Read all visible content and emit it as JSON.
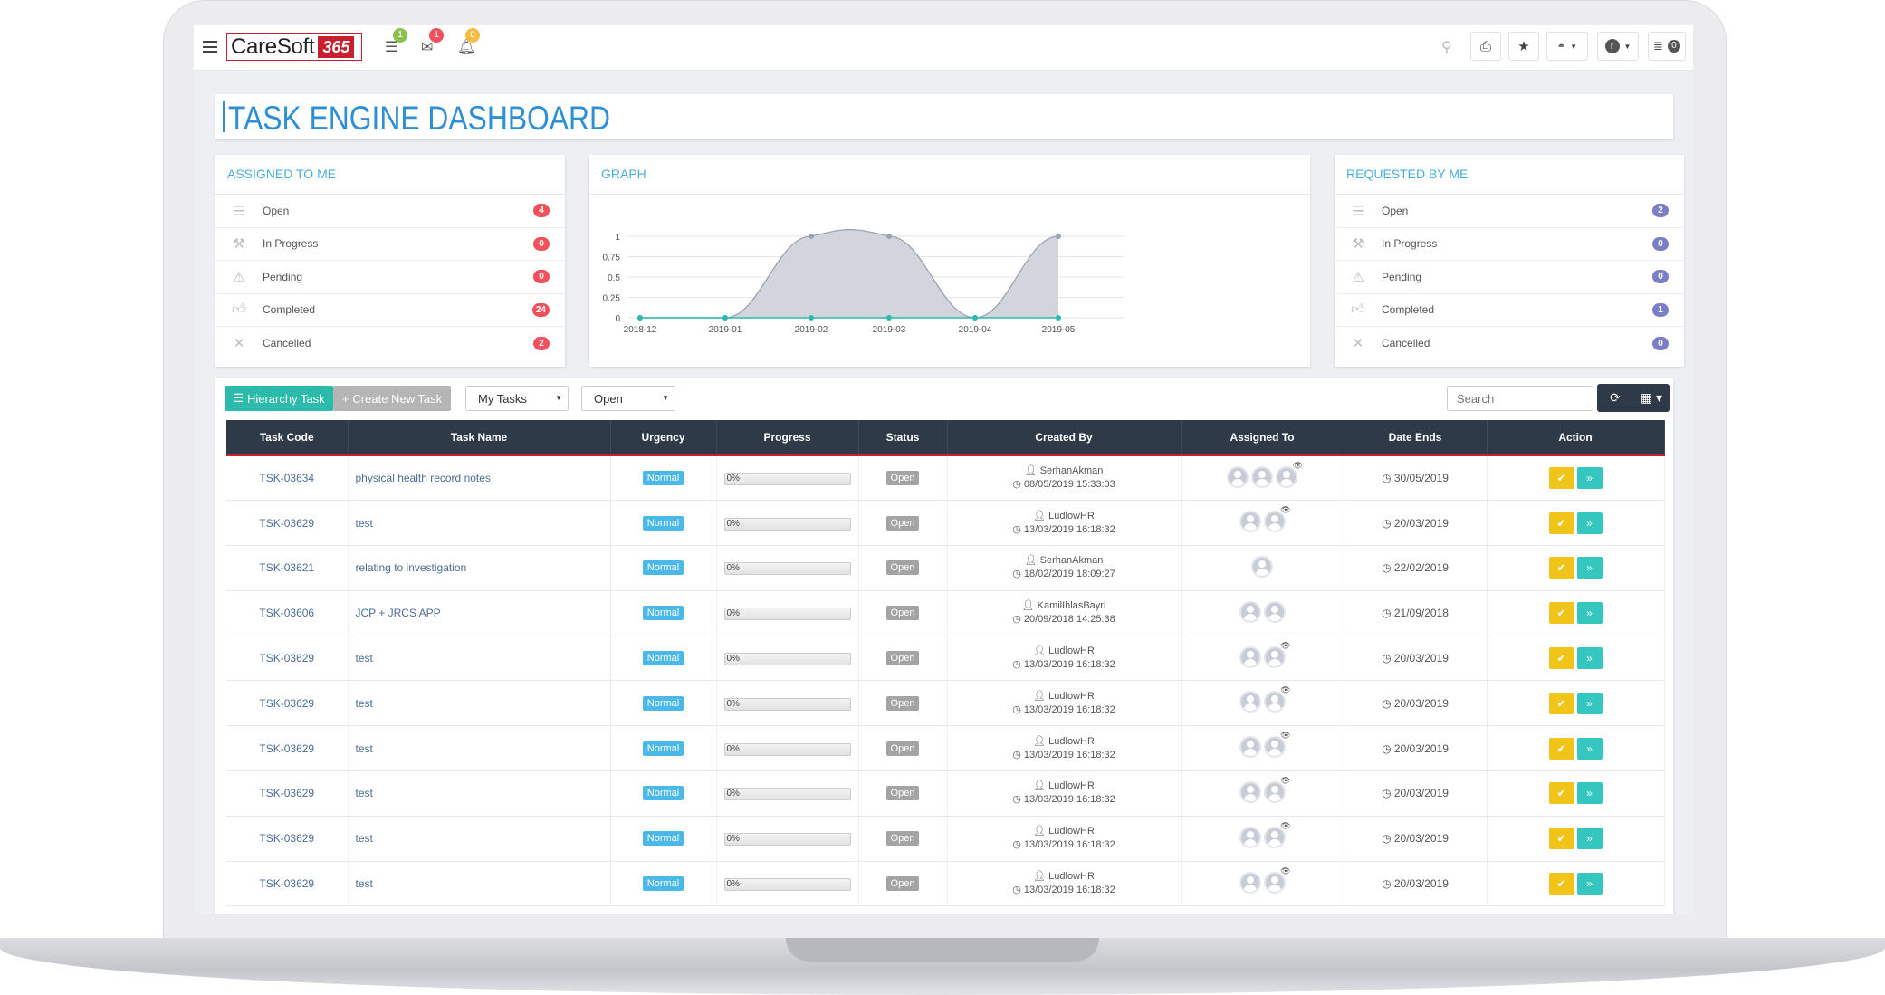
{
  "header": {
    "logo_text": "CareSoft",
    "logo_number": "365",
    "tasks_badge": "1",
    "mail_badge": "1",
    "bell_badge": "0",
    "list_count": "0",
    "user_initial": "r"
  },
  "page_title": "TASK ENGINE DASHBOARD",
  "assigned": {
    "title": "ASSIGNED TO ME",
    "items": [
      {
        "label": "Open",
        "count": "4",
        "icon": "list-icon"
      },
      {
        "label": "In Progress",
        "count": "0",
        "icon": "gavel-icon"
      },
      {
        "label": "Pending",
        "count": "0",
        "icon": "warning-icon"
      },
      {
        "label": "Completed",
        "count": "24",
        "icon": "thumbs-up-icon"
      },
      {
        "label": "Cancelled",
        "count": "2",
        "icon": "close-icon"
      }
    ]
  },
  "requested": {
    "title": "REQUESTED BY ME",
    "items": [
      {
        "label": "Open",
        "count": "2",
        "icon": "list-icon"
      },
      {
        "label": "In Progress",
        "count": "0",
        "icon": "gavel-icon"
      },
      {
        "label": "Pending",
        "count": "0",
        "icon": "warning-icon"
      },
      {
        "label": "Completed",
        "count": "1",
        "icon": "thumbs-up-icon"
      },
      {
        "label": "Cancelled",
        "count": "0",
        "icon": "close-icon"
      }
    ]
  },
  "graph": {
    "title": "GRAPH"
  },
  "chart_data": {
    "type": "area",
    "categories": [
      "2018-12",
      "2019-01",
      "2019-02",
      "2019-03",
      "2019-04",
      "2019-05"
    ],
    "series": [
      {
        "values": [
          0,
          0,
          1,
          1,
          0,
          1
        ],
        "color": "#9aa3b2"
      },
      {
        "values": [
          0,
          0,
          0,
          0,
          0,
          0
        ],
        "color": "#2bbbad"
      }
    ],
    "yticks": [
      "0",
      "0.25",
      "0.5",
      "0.75",
      "1"
    ],
    "ylim": [
      0,
      1
    ],
    "grid": true
  },
  "toolbar": {
    "hierarchy_label": "Hierarchy Task",
    "create_label": "Create New Task",
    "filter_tasks": "My Tasks",
    "filter_status": "Open",
    "search_placeholder": "Search"
  },
  "table": {
    "headers": [
      "Task Code",
      "Task Name",
      "Urgency",
      "Progress",
      "Status",
      "Created By",
      "Assigned To",
      "Date Ends",
      "Action"
    ],
    "rows": [
      {
        "code": "TSK-03634",
        "name": "physical health record notes",
        "urgency": "Normal",
        "progress": "0%",
        "status": "Open",
        "creator": "SerhanAkman",
        "created": "08/05/2019 15:33:03",
        "avatars": 3,
        "eye": true,
        "ends": "30/05/2019"
      },
      {
        "code": "TSK-03629",
        "name": "test",
        "urgency": "Normal",
        "progress": "0%",
        "status": "Open",
        "creator": "LudlowHR",
        "created": "13/03/2019 16:18:32",
        "avatars": 2,
        "eye": true,
        "ends": "20/03/2019"
      },
      {
        "code": "TSK-03621",
        "name": "relating to investigation",
        "urgency": "Normal",
        "progress": "0%",
        "status": "Open",
        "creator": "SerhanAkman",
        "created": "18/02/2019 18:09:27",
        "avatars": 1,
        "eye": false,
        "ends": "22/02/2019"
      },
      {
        "code": "TSK-03606",
        "name": "JCP + JRCS APP",
        "urgency": "Normal",
        "progress": "0%",
        "status": "Open",
        "creator": "KamilIhlasBayri",
        "created": "20/09/2018 14:25:38",
        "avatars": 2,
        "eye": false,
        "ends": "21/09/2018"
      },
      {
        "code": "TSK-03629",
        "name": "test",
        "urgency": "Normal",
        "progress": "0%",
        "status": "Open",
        "creator": "LudlowHR",
        "created": "13/03/2019 16:18:32",
        "avatars": 2,
        "eye": true,
        "ends": "20/03/2019"
      },
      {
        "code": "TSK-03629",
        "name": "test",
        "urgency": "Normal",
        "progress": "0%",
        "status": "Open",
        "creator": "LudlowHR",
        "created": "13/03/2019 16:18:32",
        "avatars": 2,
        "eye": true,
        "ends": "20/03/2019"
      },
      {
        "code": "TSK-03629",
        "name": "test",
        "urgency": "Normal",
        "progress": "0%",
        "status": "Open",
        "creator": "LudlowHR",
        "created": "13/03/2019 16:18:32",
        "avatars": 2,
        "eye": true,
        "ends": "20/03/2019"
      },
      {
        "code": "TSK-03629",
        "name": "test",
        "urgency": "Normal",
        "progress": "0%",
        "status": "Open",
        "creator": "LudlowHR",
        "created": "13/03/2019 16:18:32",
        "avatars": 2,
        "eye": true,
        "ends": "20/03/2019"
      },
      {
        "code": "TSK-03629",
        "name": "test",
        "urgency": "Normal",
        "progress": "0%",
        "status": "Open",
        "creator": "LudlowHR",
        "created": "13/03/2019 16:18:32",
        "avatars": 2,
        "eye": true,
        "ends": "20/03/2019"
      },
      {
        "code": "TSK-03629",
        "name": "test",
        "urgency": "Normal",
        "progress": "0%",
        "status": "Open",
        "creator": "LudlowHR",
        "created": "13/03/2019 16:18:32",
        "avatars": 2,
        "eye": true,
        "ends": "20/03/2019"
      }
    ]
  },
  "colors": {
    "accent_blue": "#2d8fd5",
    "teal": "#2bbbad",
    "badge_red": "#f1515d",
    "badge_purple": "#7c7fc8",
    "action_yellow": "#f0c419",
    "action_teal": "#35c6c0",
    "urgency_blue": "#4ab8e8",
    "status_gray": "#a4a4a4",
    "table_header": "#2e3a47"
  }
}
